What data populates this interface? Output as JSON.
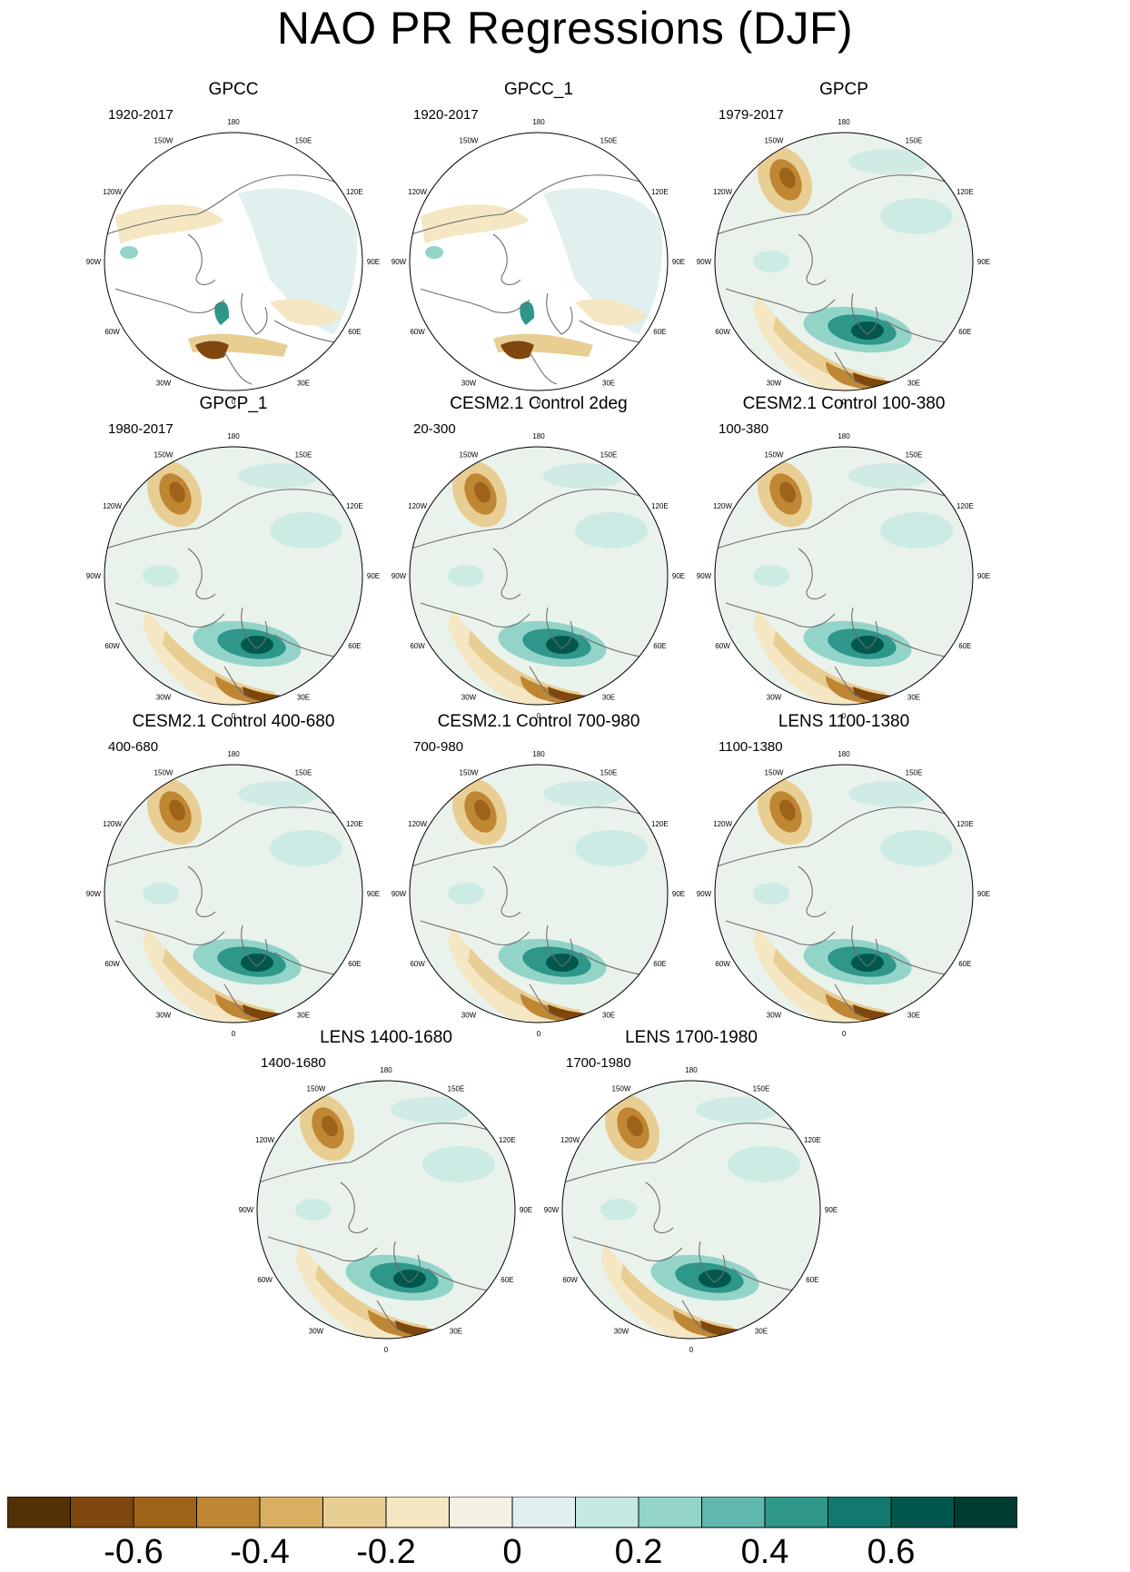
{
  "title": "NAO PR Regressions (DJF)",
  "panels": [
    {
      "title": "GPCC",
      "period": "1920-2017",
      "coverage": "land"
    },
    {
      "title": "GPCC_1",
      "period": "1920-2017",
      "coverage": "land"
    },
    {
      "title": "GPCP",
      "period": "1979-2017",
      "coverage": "full"
    },
    {
      "title": "GPCP_1",
      "period": "1980-2017",
      "coverage": "full"
    },
    {
      "title": "CESM2.1 Control 2deg",
      "period": "20-300",
      "coverage": "full"
    },
    {
      "title": "CESM2.1 Control 100-380",
      "period": "100-380",
      "coverage": "full"
    },
    {
      "title": "CESM2.1 Control 400-680",
      "period": "400-680",
      "coverage": "full"
    },
    {
      "title": "CESM2.1 Control 700-980",
      "period": "700-980",
      "coverage": "full"
    },
    {
      "title": "LENS 1100-1380",
      "period": "1100-1380",
      "coverage": "full"
    },
    {
      "title": "LENS 1400-1680",
      "period": "1400-1680",
      "coverage": "full"
    },
    {
      "title": "LENS 1700-1980",
      "period": "1700-1980",
      "coverage": "full"
    }
  ],
  "longitude_labels": [
    "180",
    "150E",
    "120E",
    "90E",
    "60E",
    "30E",
    "0",
    "30W",
    "60W",
    "90W",
    "120W",
    "150W"
  ],
  "colorbar": {
    "colors": [
      "#543005",
      "#7f470e",
      "#9e6219",
      "#bf8634",
      "#d9b062",
      "#e9ce94",
      "#f5e7c4",
      "#f4f0e4",
      "#e1f0ee",
      "#c4e8e2",
      "#93d4c9",
      "#5fb8ab",
      "#2f968a",
      "#13786d",
      "#01574b",
      "#003c30"
    ],
    "labels": [
      "-0.6",
      "-0.4",
      "-0.2",
      "0",
      "0.2",
      "0.4",
      "0.6"
    ]
  }
}
